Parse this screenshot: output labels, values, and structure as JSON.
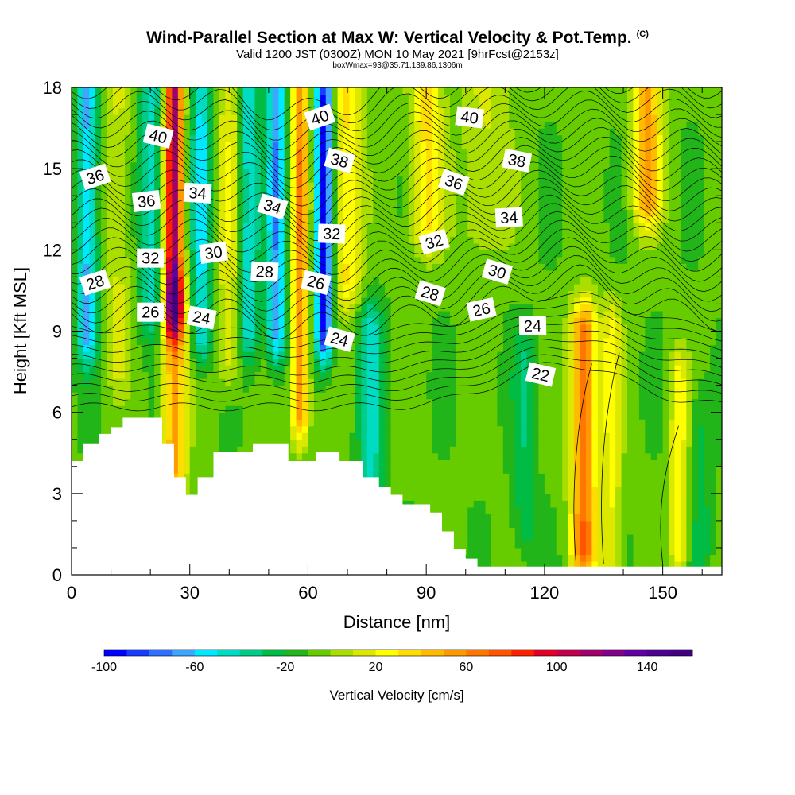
{
  "header": {
    "title": "Wind-Parallel Section at Max W: Vertical Velocity & Pot.Temp.",
    "title_mark": "(C)",
    "subtitle": "Valid 1200 JST (0300Z) MON 10 May 2021 [9hrFcst@2153z]",
    "info_line": "boxWmax=93@35.71,139.86,1306m"
  },
  "chart_data": {
    "type": "heatmap",
    "xlabel": "Distance [nm]",
    "ylabel": "Height [Kft MSL]",
    "xlim": [
      0,
      165
    ],
    "ylim": [
      0,
      18
    ],
    "x_ticks": [
      0,
      30,
      60,
      90,
      120,
      150
    ],
    "y_ticks": [
      0,
      3,
      6,
      9,
      12,
      15,
      18
    ],
    "colorbar": {
      "label": "Vertical Velocity [cm/s]",
      "range": [
        -100,
        160
      ],
      "step": 10,
      "tick_values": [
        -100,
        -60,
        -20,
        20,
        60,
        100,
        140
      ],
      "tick_labels": [
        "-100",
        "-60",
        "-20",
        "20",
        "60",
        "100",
        "140"
      ],
      "colors": [
        "#0000ff",
        "#1a3cff",
        "#2e70ff",
        "#3ea6ff",
        "#00e8ff",
        "#00dcc4",
        "#00cc88",
        "#00bb44",
        "#22b51a",
        "#66cc00",
        "#aadd00",
        "#dde800",
        "#ffff00",
        "#ffdd00",
        "#ffbb00",
        "#ff9900",
        "#ff7700",
        "#ff5500",
        "#ff2200",
        "#e0002a",
        "#c0004a",
        "#a0006a",
        "#80008a",
        "#6000a0",
        "#4a0090",
        "#400080"
      ]
    },
    "velocity_features": [
      {
        "x": 4,
        "w": 2.5,
        "amp": -55,
        "zmin": 9,
        "zmax": 18
      },
      {
        "x": 12,
        "w": 3,
        "amp": 20,
        "zmin": 8,
        "zmax": 18
      },
      {
        "x": 20,
        "w": 2.6,
        "amp": -40,
        "zmin": 10,
        "zmax": 18
      },
      {
        "x": 26,
        "w": 2.2,
        "amp": 120,
        "zmin": 10,
        "zmax": 18
      },
      {
        "x": 26,
        "w": 3,
        "amp": 60,
        "zmin": 4,
        "zmax": 10
      },
      {
        "x": 33,
        "w": 2.5,
        "amp": -45,
        "zmin": 9,
        "zmax": 18
      },
      {
        "x": 40,
        "w": 3,
        "amp": 25,
        "zmin": 8,
        "zmax": 18
      },
      {
        "x": 45,
        "w": 2.5,
        "amp": -40,
        "zmin": 9,
        "zmax": 18
      },
      {
        "x": 52,
        "w": 2.5,
        "amp": -60,
        "zmin": 9,
        "zmax": 18
      },
      {
        "x": 58,
        "w": 2.2,
        "amp": 65,
        "zmin": 6,
        "zmax": 18
      },
      {
        "x": 64,
        "w": 2.2,
        "amp": -85,
        "zmin": 9,
        "zmax": 18
      },
      {
        "x": 70,
        "w": 3.5,
        "amp": 40,
        "zmin": 11,
        "zmax": 18
      },
      {
        "x": 76,
        "w": 3,
        "amp": -35,
        "zmin": 3,
        "zmax": 9
      },
      {
        "x": 90,
        "w": 4,
        "amp": 40,
        "zmin": 13,
        "zmax": 18
      },
      {
        "x": 105,
        "w": 6,
        "amp": 20,
        "zmin": 13,
        "zmax": 18
      },
      {
        "x": 115,
        "w": 3,
        "amp": -20,
        "zmin": 2,
        "zmax": 8
      },
      {
        "x": 130,
        "w": 3.2,
        "amp": 75,
        "zmin": 1,
        "zmax": 9
      },
      {
        "x": 137,
        "w": 2.5,
        "amp": 30,
        "zmin": 1,
        "zmax": 9
      },
      {
        "x": 146,
        "w": 3.5,
        "amp": 60,
        "zmin": 14,
        "zmax": 18
      },
      {
        "x": 154,
        "w": 2.2,
        "amp": 35,
        "zmin": 1,
        "zmax": 7
      },
      {
        "x": 160,
        "w": 2.5,
        "amp": -15,
        "zmin": 1,
        "zmax": 6
      }
    ],
    "terrain": [
      [
        0,
        4.2
      ],
      [
        3,
        4.2
      ],
      [
        3,
        4.85
      ],
      [
        7,
        4.85
      ],
      [
        7,
        5.2
      ],
      [
        10,
        5.2
      ],
      [
        10,
        5.45
      ],
      [
        13,
        5.45
      ],
      [
        13,
        5.8
      ],
      [
        23,
        5.8
      ],
      [
        23,
        4.85
      ],
      [
        26,
        4.85
      ],
      [
        26,
        3.6
      ],
      [
        29,
        3.6
      ],
      [
        29,
        2.95
      ],
      [
        32,
        2.95
      ],
      [
        32,
        3.6
      ],
      [
        36,
        3.6
      ],
      [
        36,
        4.55
      ],
      [
        46,
        4.55
      ],
      [
        46,
        4.85
      ],
      [
        55,
        4.85
      ],
      [
        55,
        4.2
      ],
      [
        62,
        4.2
      ],
      [
        62,
        4.55
      ],
      [
        68,
        4.55
      ],
      [
        68,
        4.2
      ],
      [
        74,
        4.2
      ],
      [
        74,
        3.6
      ],
      [
        78,
        3.6
      ],
      [
        78,
        3.25
      ],
      [
        81,
        3.25
      ],
      [
        81,
        2.95
      ],
      [
        84,
        2.95
      ],
      [
        84,
        2.6
      ],
      [
        91,
        2.6
      ],
      [
        91,
        2.3
      ],
      [
        94,
        2.3
      ],
      [
        94,
        1.6
      ],
      [
        97,
        1.6
      ],
      [
        97,
        0.95
      ],
      [
        100,
        0.95
      ],
      [
        100,
        0.6
      ],
      [
        103,
        0.6
      ],
      [
        103,
        0.3
      ],
      [
        165,
        0.3
      ]
    ],
    "theta_contour_labels": [
      {
        "label": "40",
        "x": 22,
        "z": 16.2
      },
      {
        "label": "40",
        "x": 63,
        "z": 16.9
      },
      {
        "label": "40",
        "x": 101,
        "z": 16.9
      },
      {
        "label": "38",
        "x": 68,
        "z": 15.3
      },
      {
        "label": "38",
        "x": 113,
        "z": 15.3
      },
      {
        "label": "36",
        "x": 6,
        "z": 14.7
      },
      {
        "label": "36",
        "x": 19,
        "z": 13.8
      },
      {
        "label": "36",
        "x": 97,
        "z": 14.5
      },
      {
        "label": "34",
        "x": 32,
        "z": 14.1
      },
      {
        "label": "34",
        "x": 51,
        "z": 13.6
      },
      {
        "label": "34",
        "x": 111,
        "z": 13.2
      },
      {
        "label": "32",
        "x": 66,
        "z": 12.6
      },
      {
        "label": "32",
        "x": 20,
        "z": 11.7
      },
      {
        "label": "32",
        "x": 92,
        "z": 12.3
      },
      {
        "label": "30",
        "x": 36,
        "z": 11.9
      },
      {
        "label": "30",
        "x": 108,
        "z": 11.2
      },
      {
        "label": "28",
        "x": 6,
        "z": 10.8
      },
      {
        "label": "28",
        "x": 49,
        "z": 11.2
      },
      {
        "label": "28",
        "x": 91,
        "z": 10.4
      },
      {
        "label": "26",
        "x": 62,
        "z": 10.8
      },
      {
        "label": "26",
        "x": 20,
        "z": 9.7
      },
      {
        "label": "26",
        "x": 104,
        "z": 9.8
      },
      {
        "label": "24",
        "x": 33,
        "z": 9.5
      },
      {
        "label": "24",
        "x": 68,
        "z": 8.7
      },
      {
        "label": "24",
        "x": 117,
        "z": 9.2
      },
      {
        "label": "22",
        "x": 119,
        "z": 7.4
      }
    ]
  }
}
